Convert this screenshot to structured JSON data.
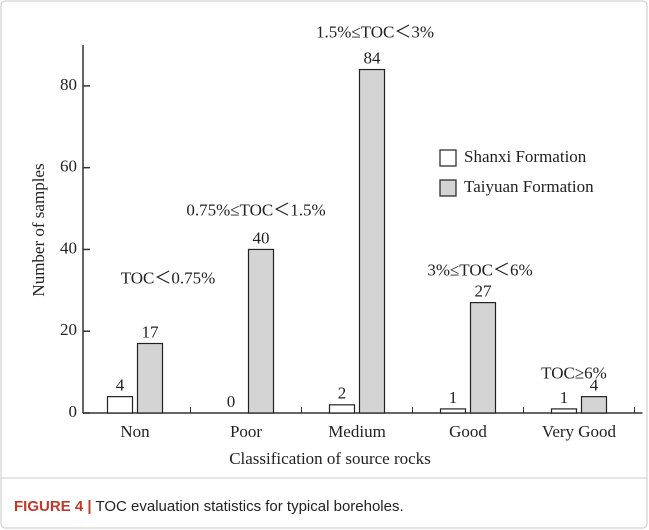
{
  "chart_data": {
    "type": "bar",
    "y_label": "Number of samples",
    "x_label": "Classification of source rocks",
    "categories": [
      "Non",
      "Poor",
      "Medium",
      "Good",
      "Very Good"
    ],
    "series": [
      {
        "name": "Shanxi Formation",
        "color": "#ffffff",
        "values": [
          4,
          0,
          2,
          1,
          1
        ]
      },
      {
        "name": "Taiyuan Formation",
        "color": "#d4d4d4",
        "values": [
          17,
          40,
          84,
          27,
          4
        ]
      }
    ],
    "annotations": [
      "TOC＜0.75%",
      "0.75%≤TOC＜1.5%",
      "1.5%≤TOC＜3%",
      "3%≤TOC＜6%",
      "TOC≥6%"
    ],
    "ylim": [
      0,
      90
    ],
    "yticks": [
      0,
      20,
      40,
      60,
      80
    ],
    "grid": false,
    "legend": "right"
  },
  "caption": {
    "label": "FIGURE 4 |",
    "text": "TOC evaluation statistics for typical boreholes."
  }
}
